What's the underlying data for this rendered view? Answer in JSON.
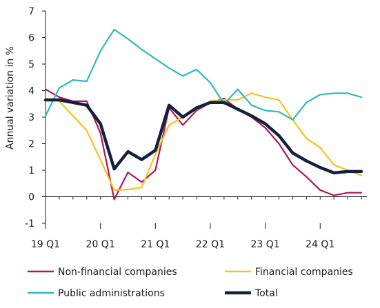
{
  "chart_data": {
    "type": "line",
    "ylabel": "Annual variation in %",
    "xlabel": "",
    "ylim": [
      -1,
      7
    ],
    "yticks": [
      -1,
      0,
      1,
      2,
      3,
      4,
      5,
      6,
      7
    ],
    "grid": false,
    "legend_position": "bottom",
    "x": [
      "19 Q1",
      "19 Q2",
      "19 Q3",
      "19 Q4",
      "20 Q1",
      "20 Q2",
      "20 Q3",
      "20 Q4",
      "21 Q1",
      "21 Q2",
      "21 Q3",
      "21 Q4",
      "22 Q1",
      "22 Q2",
      "22 Q3",
      "22 Q4",
      "23 Q1",
      "23 Q2",
      "23 Q3",
      "23 Q4",
      "24 Q1",
      "24 Q2",
      "24 Q3",
      "24 Q4"
    ],
    "xtick_labels": [
      "19 Q1",
      "20 Q1",
      "21 Q1",
      "22 Q1",
      "23 Q1",
      "24 Q1"
    ],
    "series": [
      {
        "name": "Non-financial companies",
        "color": "#b0145c",
        "values": [
          4.05,
          3.75,
          3.6,
          3.6,
          2.4,
          -0.1,
          0.92,
          0.55,
          1.0,
          3.35,
          2.7,
          3.25,
          3.55,
          3.7,
          3.3,
          3.0,
          2.6,
          2.0,
          1.2,
          0.75,
          0.25,
          0.05,
          0.15,
          0.15
        ]
      },
      {
        "name": "Financial companies",
        "color": "#f5c21b",
        "values": [
          3.7,
          3.6,
          3.05,
          2.5,
          1.4,
          0.25,
          0.27,
          0.35,
          1.6,
          2.7,
          3.0,
          3.3,
          3.6,
          3.65,
          3.65,
          3.9,
          3.75,
          3.65,
          2.9,
          2.2,
          1.85,
          1.2,
          1.0,
          0.8
        ]
      },
      {
        "name": "Public administrations",
        "color": "#2fb7c0",
        "values": [
          3.05,
          4.1,
          4.4,
          4.35,
          5.5,
          6.3,
          5.95,
          5.55,
          5.2,
          4.85,
          4.55,
          4.8,
          4.3,
          3.5,
          4.05,
          3.45,
          3.25,
          3.2,
          2.9,
          3.55,
          3.85,
          3.9,
          3.9,
          3.75
        ]
      },
      {
        "name": "Total",
        "color": "#14213d",
        "values": [
          3.65,
          3.65,
          3.55,
          3.45,
          2.75,
          1.05,
          1.7,
          1.4,
          1.75,
          3.45,
          3.0,
          3.35,
          3.55,
          3.55,
          3.3,
          3.05,
          2.75,
          2.3,
          1.65,
          1.35,
          1.1,
          0.9,
          0.95,
          0.95
        ]
      }
    ]
  }
}
